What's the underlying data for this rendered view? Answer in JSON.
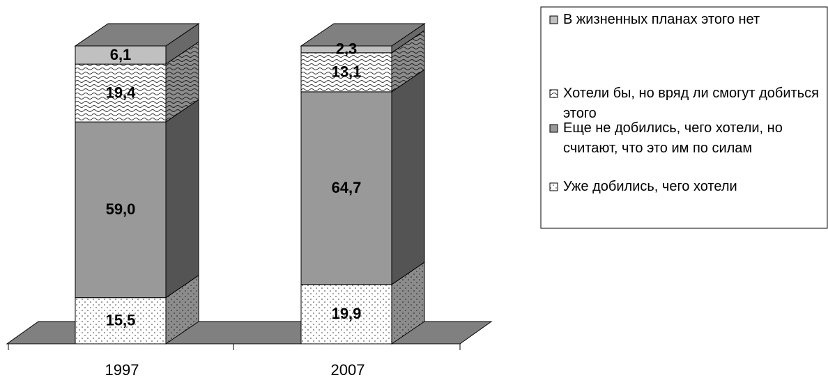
{
  "chart_data": {
    "type": "bar",
    "stacked": true,
    "categories": [
      "1997",
      "2007"
    ],
    "series": [
      {
        "name": "Уже добились, чего хотели",
        "color": "#ffffff",
        "values": [
          15.5,
          19.9
        ],
        "value_labels": [
          "15,5",
          "19,9"
        ]
      },
      {
        "name": "Еще не добились, чего хотели, но считают, что это им по силам",
        "color": "#999999",
        "values": [
          59.0,
          64.7
        ],
        "value_labels": [
          "59,0",
          "64,7"
        ]
      },
      {
        "name": "Хотели бы, но вряд ли смогут добиться этого",
        "color": "#ffffff",
        "values": [
          19.4,
          13.1
        ],
        "value_labels": [
          "19,4",
          "13,1"
        ]
      },
      {
        "name": "В жизненных планах этого нет",
        "color": "#c0c0c0",
        "values": [
          6.1,
          2.3
        ],
        "value_labels": [
          "6,1",
          "2,3"
        ]
      }
    ]
  }
}
